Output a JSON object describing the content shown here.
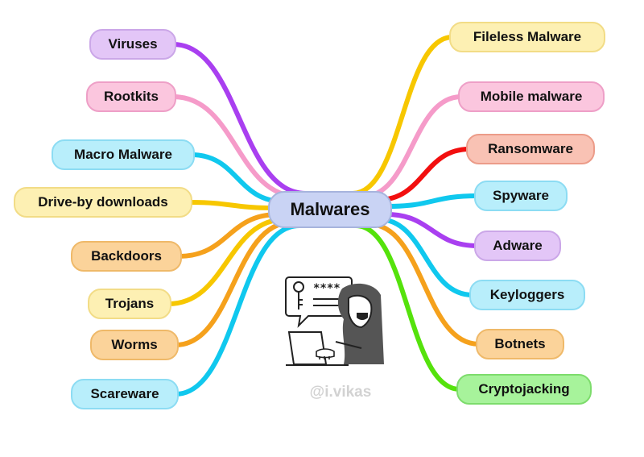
{
  "center": {
    "label": "Malwares"
  },
  "watermark": "@i.vikas",
  "left_nodes": [
    {
      "label": "Viruses",
      "fill": "#e3c6f7",
      "border": "#cba7e8",
      "line": "#a93ff0"
    },
    {
      "label": "Rootkits",
      "fill": "#fbc6de",
      "border": "#ee9fc7",
      "line": "#f59bc9"
    },
    {
      "label": "Macro Malware",
      "fill": "#b8eefb",
      "border": "#8cdcf3",
      "line": "#10c8ee"
    },
    {
      "label": "Drive-by downloads",
      "fill": "#fdf0b3",
      "border": "#f2dc86",
      "line": "#f7c700"
    },
    {
      "label": "Backdoors",
      "fill": "#fbd39a",
      "border": "#efb969",
      "line": "#f5a11c"
    },
    {
      "label": "Trojans",
      "fill": "#fdf0b3",
      "border": "#f2dc86",
      "line": "#f7c700"
    },
    {
      "label": "Worms",
      "fill": "#fbd39a",
      "border": "#efb969",
      "line": "#f5a11c"
    },
    {
      "label": "Scareware",
      "fill": "#b8eefb",
      "border": "#8cdcf3",
      "line": "#10c8ee"
    }
  ],
  "right_nodes": [
    {
      "label": "Fileless Malware",
      "fill": "#fdf0b3",
      "border": "#f2dc86",
      "line": "#f7c700"
    },
    {
      "label": "Mobile malware",
      "fill": "#fbc6de",
      "border": "#ee9fc7",
      "line": "#f59bc9"
    },
    {
      "label": "Ransomware",
      "fill": "#f9c2b4",
      "border": "#ec9c89",
      "line": "#f20f0f"
    },
    {
      "label": "Spyware",
      "fill": "#b8eefb",
      "border": "#8cdcf3",
      "line": "#10c8ee"
    },
    {
      "label": "Adware",
      "fill": "#e3c6f7",
      "border": "#cba7e8",
      "line": "#a93ff0"
    },
    {
      "label": "Keyloggers",
      "fill": "#b8eefb",
      "border": "#8cdcf3",
      "line": "#10c8ee"
    },
    {
      "label": "Botnets",
      "fill": "#fbd39a",
      "border": "#efb969",
      "line": "#f5a11c"
    },
    {
      "label": "Cryptojacking",
      "fill": "#a7f39b",
      "border": "#7ddc6c",
      "line": "#55e20c"
    }
  ],
  "illustration": {
    "password_mask": "****"
  }
}
